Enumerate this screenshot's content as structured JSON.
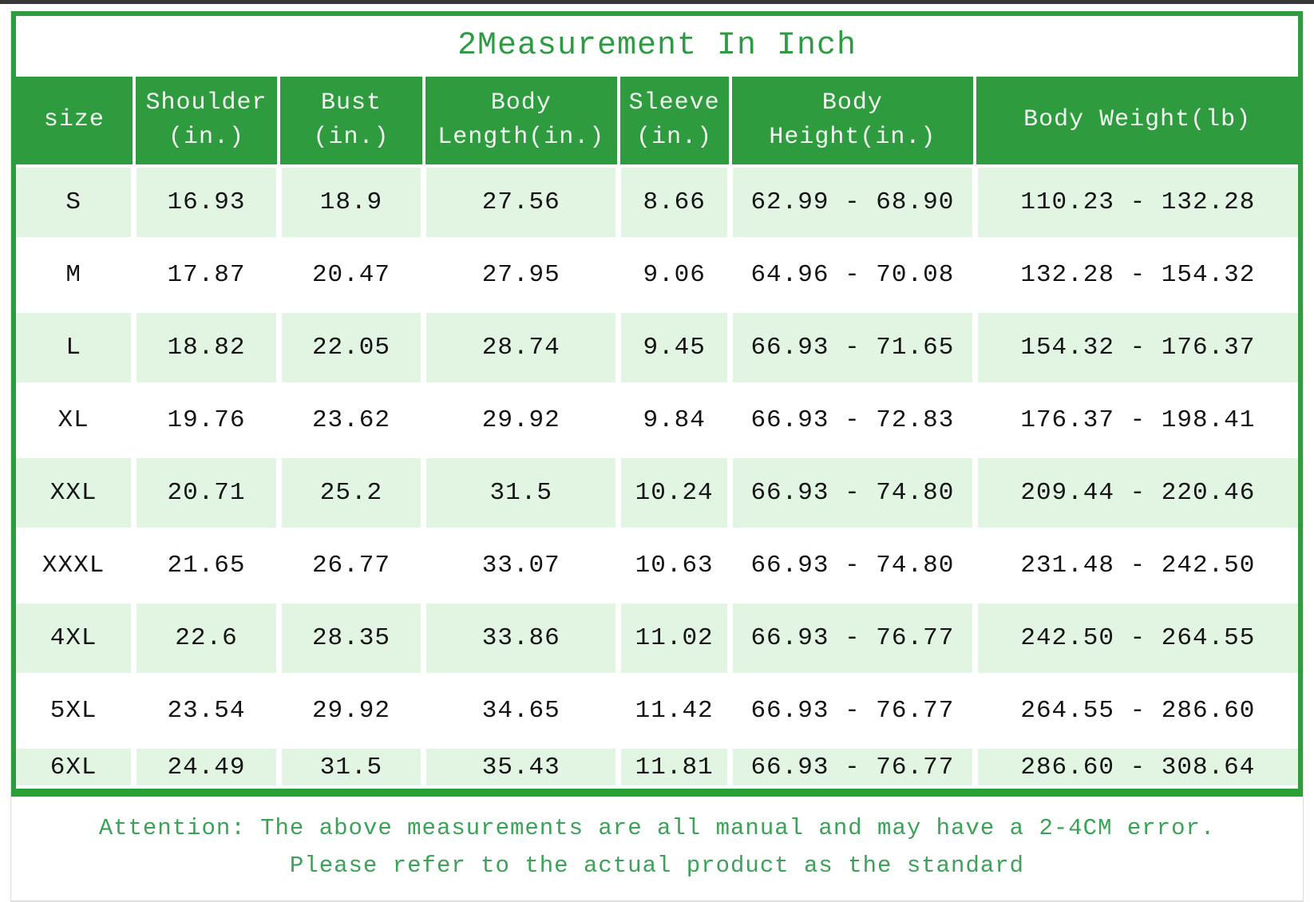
{
  "title": "2Measurement In Inch",
  "table": {
    "columns": [
      {
        "id": "size",
        "line1": "size",
        "line2": ""
      },
      {
        "id": "shoulder",
        "line1": "Shoulder",
        "line2": "(in.)"
      },
      {
        "id": "bust",
        "line1": "Bust",
        "line2": "(in.)"
      },
      {
        "id": "body-length",
        "line1": "Body",
        "line2": "Length(in.)"
      },
      {
        "id": "sleeve",
        "line1": "Sleeve",
        "line2": "(in.)"
      },
      {
        "id": "body-height",
        "line1": "Body",
        "line2": "Height(in.)"
      },
      {
        "id": "body-weight",
        "line1": "Body Weight(lb)",
        "line2": ""
      }
    ],
    "rows": [
      [
        "S",
        "16.93",
        "18.9",
        "27.56",
        "8.66",
        "62.99 - 68.90",
        "110.23 - 132.28"
      ],
      [
        "M",
        "17.87",
        "20.47",
        "27.95",
        "9.06",
        "64.96 - 70.08",
        "132.28 - 154.32"
      ],
      [
        "L",
        "18.82",
        "22.05",
        "28.74",
        "9.45",
        "66.93 - 71.65",
        "154.32 - 176.37"
      ],
      [
        "XL",
        "19.76",
        "23.62",
        "29.92",
        "9.84",
        "66.93 - 72.83",
        "176.37 - 198.41"
      ],
      [
        "XXL",
        "20.71",
        "25.2",
        "31.5",
        "10.24",
        "66.93 - 74.80",
        "209.44 - 220.46"
      ],
      [
        "XXXL",
        "21.65",
        "26.77",
        "33.07",
        "10.63",
        "66.93 - 74.80",
        "231.48 - 242.50"
      ],
      [
        "4XL",
        "22.6",
        "28.35",
        "33.86",
        "11.02",
        "66.93 - 76.77",
        "242.50 - 264.55"
      ],
      [
        "5XL",
        "23.54",
        "29.92",
        "34.65",
        "11.42",
        "66.93 - 76.77",
        "264.55 - 286.60"
      ],
      [
        "6XL",
        "24.49",
        "31.5",
        "35.43",
        "11.81",
        "66.93 - 76.77",
        "286.60 - 308.64"
      ]
    ]
  },
  "note": {
    "line1": "Attention: The above measurements are all manual and may have a 2-4CM error.",
    "line2": "Please refer to the actual product as the standard"
  },
  "colors": {
    "header_green": "#2e9b3e",
    "row_tint_green": "#e2f4e2",
    "title_green": "#2e9b44",
    "note_green": "#3ba257",
    "border_green": "#2e9b3e",
    "divider_green": "#29a033"
  }
}
